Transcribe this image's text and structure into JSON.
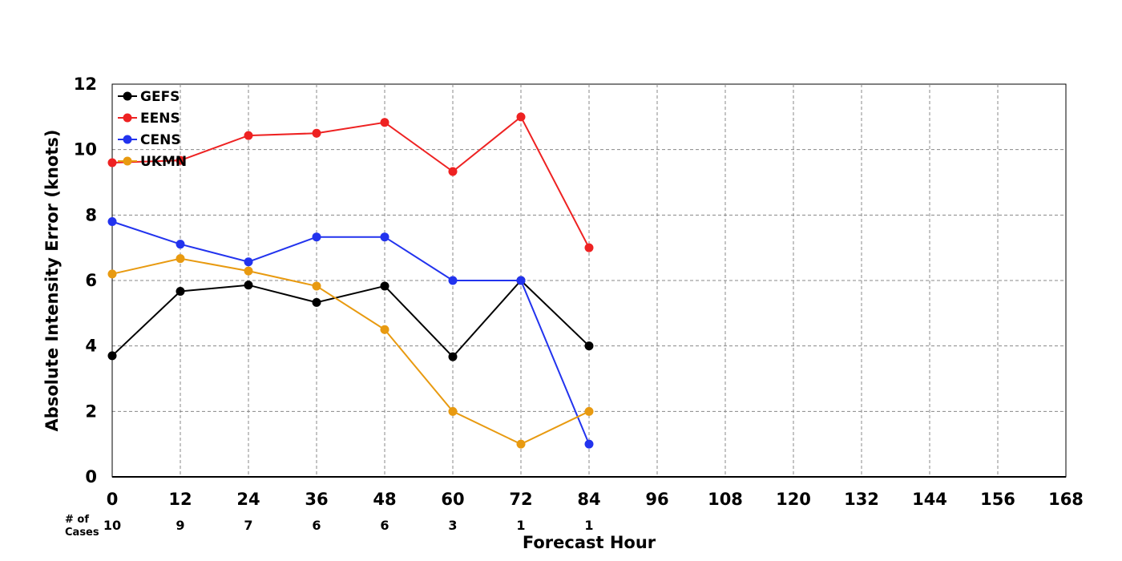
{
  "chart_data": {
    "type": "line",
    "title": "",
    "xlabel": "Forecast Hour",
    "ylabel": "Absolute Intensity Error (knots)",
    "xlim": [
      0,
      168
    ],
    "ylim": [
      0,
      12
    ],
    "xticks": [
      0,
      12,
      24,
      36,
      48,
      60,
      72,
      84,
      96,
      108,
      120,
      132,
      144,
      156,
      168
    ],
    "yticks": [
      0,
      2,
      4,
      6,
      8,
      10,
      12
    ],
    "grid": true,
    "legend_position": "top-left",
    "x": [
      0,
      12,
      24,
      36,
      48,
      60,
      72,
      84
    ],
    "series": [
      {
        "name": "GEFS",
        "color": "#000000",
        "values": [
          3.7,
          5.67,
          5.86,
          5.33,
          5.83,
          3.67,
          6.0,
          4.0
        ]
      },
      {
        "name": "EENS",
        "color": "#ee2222",
        "values": [
          9.6,
          9.67,
          10.43,
          10.5,
          10.83,
          9.33,
          11.0,
          7.0
        ]
      },
      {
        "name": "CENS",
        "color": "#2233ee",
        "values": [
          7.8,
          7.11,
          6.57,
          7.33,
          7.33,
          6.0,
          6.0,
          1.0
        ]
      },
      {
        "name": "UKMN",
        "color": "#e89a10",
        "values": [
          6.2,
          6.67,
          6.29,
          5.83,
          4.5,
          2.0,
          1.0,
          2.0
        ]
      }
    ],
    "cases_label_line1": "# of",
    "cases_label_line2": "Cases",
    "cases": [
      {
        "x": 0,
        "n": "10"
      },
      {
        "x": 12,
        "n": "9"
      },
      {
        "x": 24,
        "n": "7"
      },
      {
        "x": 36,
        "n": "6"
      },
      {
        "x": 48,
        "n": "6"
      },
      {
        "x": 60,
        "n": "3"
      },
      {
        "x": 72,
        "n": "1"
      },
      {
        "x": 84,
        "n": "1"
      }
    ]
  }
}
